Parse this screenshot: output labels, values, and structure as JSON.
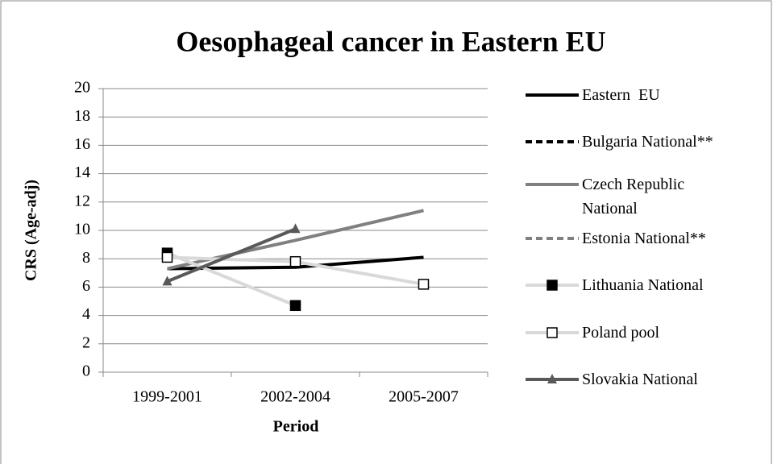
{
  "chart_data": {
    "type": "line",
    "title": "Oesophageal cancer in Eastern EU",
    "xlabel": "Period",
    "ylabel": "CRS (Age-adj)",
    "categories": [
      "1999-2001",
      "2002-2004",
      "2005-2007"
    ],
    "ylim": [
      0,
      20
    ],
    "yticks": [
      0,
      2,
      4,
      6,
      8,
      10,
      12,
      14,
      16,
      18,
      20
    ],
    "grid": true,
    "legend": "right",
    "series": [
      {
        "name": "Eastern  EU",
        "color": "#000000",
        "dash": false,
        "values": [
          7.3,
          7.4,
          8.1
        ]
      },
      {
        "name": "Bulgaria National**",
        "color": "#000000",
        "dash": true,
        "values": [
          null,
          null,
          null
        ]
      },
      {
        "name": "Czech Republic National",
        "color": "#808080",
        "dash": false,
        "values": [
          7.3,
          9.3,
          11.4
        ]
      },
      {
        "name": "Estonia National**",
        "color": "#808080",
        "dash": true,
        "values": [
          null,
          null,
          null
        ]
      },
      {
        "name": "Lithuania National",
        "color": "#d9d9d9",
        "dash": false,
        "marker": "square",
        "marker_color": "#000000",
        "values": [
          8.4,
          4.7,
          null
        ]
      },
      {
        "name": "Poland pool",
        "color": "#d9d9d9",
        "dash": false,
        "marker": "square",
        "marker_color": "#ffffff",
        "values": [
          8.1,
          7.8,
          6.2
        ]
      },
      {
        "name": "Slovakia National",
        "color": "#595959",
        "dash": false,
        "marker": "triangle",
        "marker_color": "#595959",
        "values": [
          6.4,
          10.1,
          null
        ]
      }
    ]
  }
}
